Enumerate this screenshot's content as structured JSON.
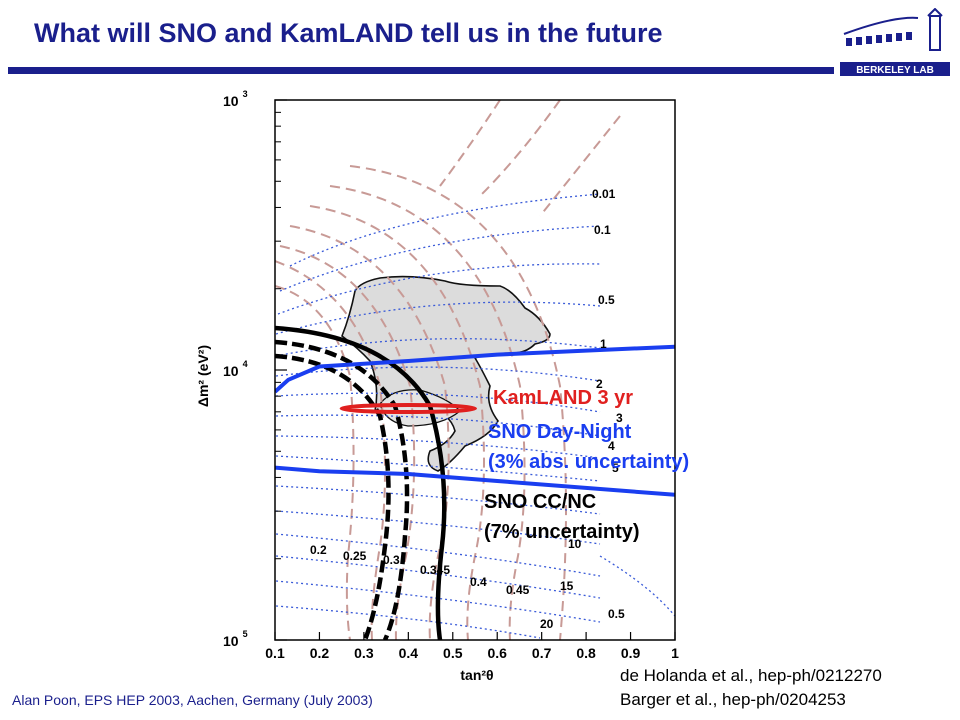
{
  "header": {
    "title": "What will SNO and KamLAND tell us in the future",
    "logo_text": "BERKELEY LAB"
  },
  "footer": {
    "citation": "Alan Poon, EPS HEP 2003, Aachen, Germany (July 2003)"
  },
  "references": [
    "de Holanda et al., hep-ph/0212270",
    "Barger et al., hep-ph/0204253"
  ],
  "colors": {
    "title": "#1a1f8c",
    "blue_line": "#1a3ef0",
    "dotted_contour": "#3a5bd8",
    "dashed_contour": "#c89a96",
    "kamland": "#e0201f",
    "sno_ccnc": "#000000",
    "region_fill": "#dcdcdc"
  },
  "chart_data": {
    "type": "contour",
    "xlabel": "tan²θ",
    "ylabel": "Δm² (eV²)",
    "xticks": [
      "0.1",
      "0.2",
      "0.3",
      "0.4",
      "0.5",
      "0.6",
      "0.7",
      "0.8",
      "0.9",
      "1"
    ],
    "yticks": [
      {
        "value": 0.001,
        "base": "10",
        "exp": "3"
      },
      {
        "value": 0.0001,
        "base": "10",
        "exp": "4"
      },
      {
        "value": 1e-05,
        "base": "10",
        "exp": "5"
      }
    ],
    "xlim": [
      0.1,
      1.0
    ],
    "ylim": [
      1e-05,
      0.001
    ],
    "yscale": "log",
    "dotted_contour_labels_right": [
      "0.01",
      "0.1",
      "0.5",
      "1",
      "2",
      "3",
      "4",
      "5",
      "10",
      "15",
      "20"
    ],
    "dotted_contour_labels_bottom_right": [
      "0.5"
    ],
    "dashed_contour_labels": [
      "0.2",
      "0.25",
      "0.3",
      "0.345",
      "0.4",
      "0.45"
    ],
    "annotations": [
      {
        "text": "KamLAND 3 yr",
        "color": "#e0201f"
      },
      {
        "text": "SNO Day-Night",
        "color": "#1a3ef0"
      },
      {
        "text": "(3% abs. uncertainty)",
        "color": "#1a3ef0"
      },
      {
        "text": "SNO CC/NC",
        "color": "#000000"
      },
      {
        "text": "(7% uncertainty)",
        "color": "#000000"
      }
    ],
    "kamland_ellipse": {
      "tan2theta": [
        0.25,
        0.55
      ],
      "dm2": 7.2e-05
    },
    "blue_lines": [
      {
        "name": "SNO Day-Night upper",
        "x": [
          0.1,
          0.13,
          0.2,
          0.4,
          0.6,
          1.0
        ],
        "y": [
          8.3e-05,
          9.2e-05,
          0.000103,
          0.000108,
          0.000114,
          0.000122
        ]
      },
      {
        "name": "SNO Day-Night lower",
        "x": [
          0.1,
          0.2,
          0.4,
          0.6,
          1.0
        ],
        "y": [
          4.35e-05,
          4.22e-05,
          4.12e-05,
          3.88e-05,
          3.45e-05
        ]
      }
    ]
  }
}
